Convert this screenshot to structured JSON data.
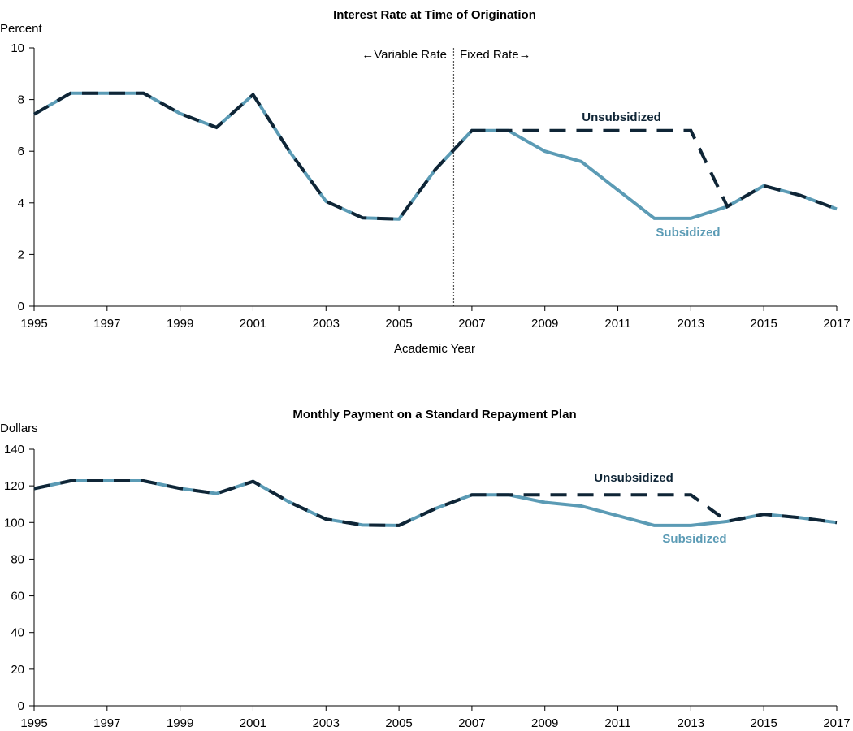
{
  "colors": {
    "subsidized": "#5b9bb5",
    "unsubsidized": "#0f2536",
    "axis": "#000000",
    "divider": "#555555"
  },
  "chart_data": [
    {
      "type": "line",
      "title": "Interest Rate at Time of Origination",
      "ylabel": "Percent",
      "xlabel": "Academic Year",
      "ylim": [
        0,
        10
      ],
      "yticks": [
        0,
        2,
        4,
        6,
        8,
        10
      ],
      "xlim": [
        1995,
        2017
      ],
      "xticks": [
        1995,
        1997,
        1999,
        2001,
        2003,
        2005,
        2007,
        2009,
        2011,
        2013,
        2015,
        2017
      ],
      "x": [
        1995,
        1996,
        1997,
        1998,
        1999,
        2000,
        2001,
        2002,
        2003,
        2004,
        2005,
        2006,
        2007,
        2008,
        2009,
        2010,
        2011,
        2012,
        2013,
        2014,
        2015,
        2016,
        2017
      ],
      "series": [
        {
          "name": "Subsidized",
          "values": [
            7.43,
            8.25,
            8.25,
            8.25,
            7.46,
            6.92,
            8.19,
            5.99,
            4.06,
            3.42,
            3.37,
            5.3,
            6.8,
            6.8,
            6.0,
            5.6,
            4.5,
            3.4,
            3.4,
            3.86,
            4.66,
            4.29,
            3.76
          ]
        },
        {
          "name": "Unsubsidized",
          "values": [
            7.43,
            8.25,
            8.25,
            8.25,
            7.46,
            6.92,
            8.19,
            5.99,
            4.06,
            3.42,
            3.37,
            5.3,
            6.8,
            6.8,
            6.8,
            6.8,
            6.8,
            6.8,
            6.8,
            3.86,
            4.66,
            4.29,
            3.76
          ]
        }
      ],
      "divider_x": 2006.5,
      "annotations": {
        "left": "←Variable Rate",
        "right": "Fixed Rate→"
      },
      "series_labels": {
        "unsubsidized": "Unsubsidized",
        "subsidized": "Subsidized"
      }
    },
    {
      "type": "line",
      "title": "Monthly Payment on a Standard Repayment Plan",
      "ylabel": "Dollars",
      "ylim": [
        0,
        140
      ],
      "yticks": [
        0,
        20,
        40,
        60,
        80,
        100,
        120,
        140
      ],
      "xlim": [
        1995,
        2017
      ],
      "xticks": [
        1995,
        1997,
        1999,
        2001,
        2003,
        2005,
        2007,
        2009,
        2011,
        2013,
        2015,
        2017
      ],
      "x": [
        1995,
        1996,
        1997,
        1998,
        1999,
        2000,
        2001,
        2002,
        2003,
        2004,
        2005,
        2006,
        2007,
        2008,
        2009,
        2010,
        2011,
        2012,
        2013,
        2014,
        2015,
        2016,
        2017
      ],
      "series": [
        {
          "name": "Subsidized",
          "values": [
            118.5,
            122.7,
            122.7,
            122.7,
            118.6,
            115.8,
            122.4,
            111.1,
            101.8,
            98.6,
            98.4,
            107.6,
            115.1,
            115.1,
            111.0,
            109.0,
            103.7,
            98.4,
            98.4,
            100.6,
            104.5,
            102.6,
            100.0
          ]
        },
        {
          "name": "Unsubsidized",
          "values": [
            118.5,
            122.7,
            122.7,
            122.7,
            118.6,
            115.8,
            122.4,
            111.1,
            101.8,
            98.6,
            98.4,
            107.6,
            115.1,
            115.1,
            115.1,
            115.1,
            115.1,
            115.1,
            115.1,
            100.6,
            104.5,
            102.6,
            100.0
          ]
        }
      ],
      "series_labels": {
        "unsubsidized": "Unsubsidized",
        "subsidized": "Subsidized"
      }
    }
  ]
}
